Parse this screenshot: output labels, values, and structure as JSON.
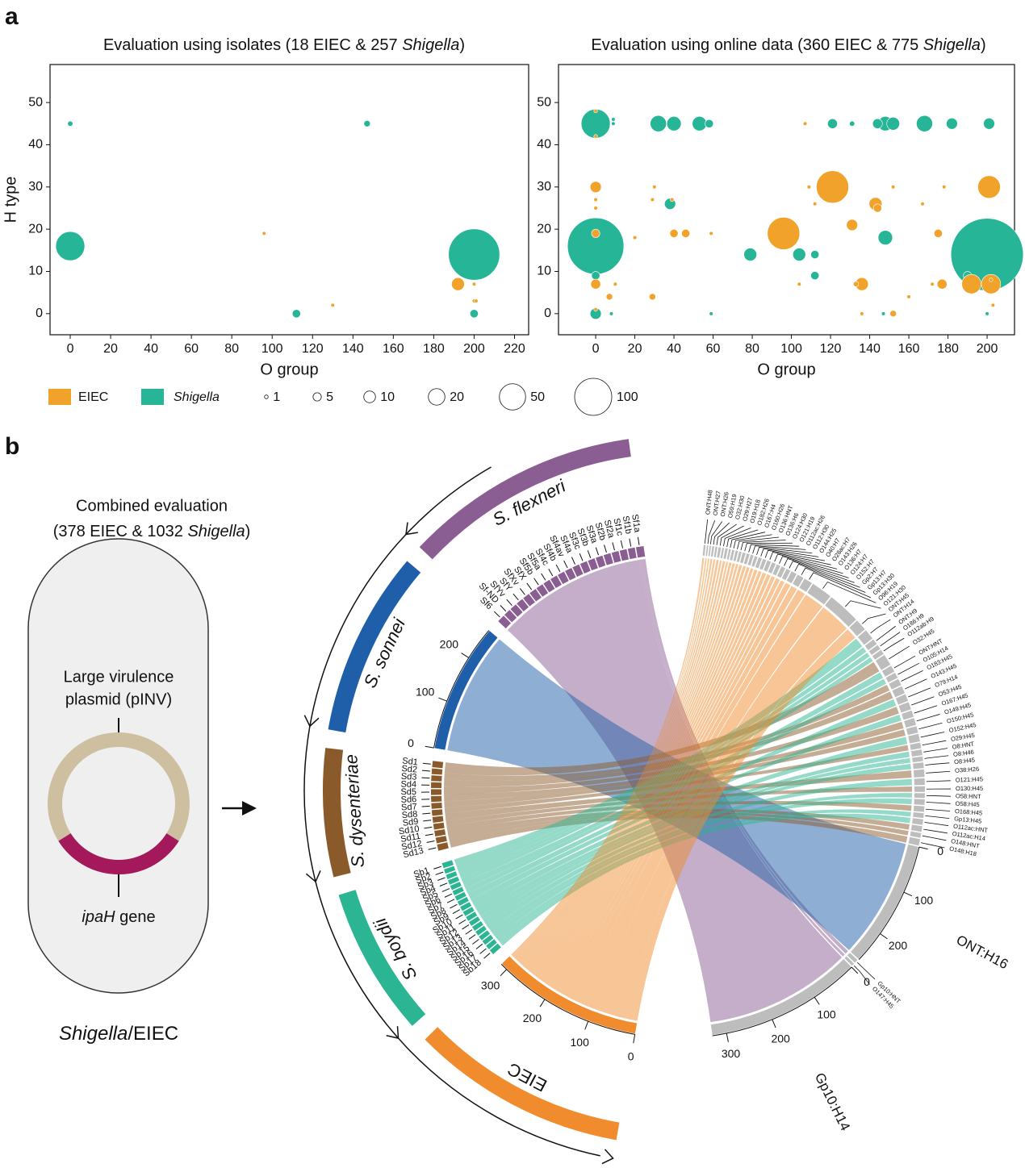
{
  "panel_labels": [
    "a",
    "b"
  ],
  "chart_data": [
    {
      "type": "scatter",
      "title": [
        "Evaluation using isolates (18 EIEC & 257 ",
        "Shigella",
        ")"
      ],
      "x_label": "O group",
      "y_label": "H type",
      "xlim": [
        -10,
        227
      ],
      "ylim": [
        -5,
        59
      ],
      "xticks": [
        0,
        20,
        40,
        60,
        80,
        100,
        120,
        140,
        160,
        180,
        200,
        220
      ],
      "yticks": [
        0,
        10,
        20,
        30,
        40,
        50
      ],
      "series": [
        {
          "name": "EIEC",
          "color": "#f0a22a",
          "x": [
            96,
            192,
            200,
            200,
            201,
            130
          ],
          "y": [
            19,
            7,
            7,
            3,
            3,
            2
          ],
          "size": [
            1,
            12,
            1,
            1,
            1,
            1
          ]
        },
        {
          "name": "Shigella",
          "color": "#27b597",
          "x": [
            200,
            0,
            0,
            147,
            112,
            200
          ],
          "y": [
            14,
            16,
            45,
            45,
            0,
            0
          ],
          "size": [
            190,
            61,
            2,
            3,
            5,
            5
          ]
        }
      ]
    },
    {
      "type": "scatter",
      "title": [
        "Evaluation using online data (360 EIEC & 775 ",
        "Shigella",
        ")"
      ],
      "x_label": "O group",
      "xlim": [
        -19,
        214
      ],
      "ylim": [
        -5,
        59
      ],
      "xticks": [
        0,
        20,
        40,
        60,
        80,
        100,
        120,
        140,
        160,
        180,
        200
      ],
      "yticks": [
        0,
        10,
        20,
        30,
        40,
        50
      ],
      "series": [
        {
          "name": "EIEC",
          "color": "#f0a22a",
          "x": [
            96,
            121,
            201,
            192,
            202,
            136,
            143,
            0,
            131,
            0,
            177,
            0,
            40,
            46,
            144,
            175,
            7,
            29,
            152,
            133,
            0,
            0,
            0,
            0,
            10,
            0,
            30,
            29,
            39,
            20,
            59,
            104,
            109,
            112,
            107,
            136,
            152,
            160,
            167,
            172,
            178,
            203,
            202
          ],
          "y": [
            19,
            30,
            30,
            7,
            7,
            7,
            26,
            30,
            21,
            7,
            7,
            19,
            19,
            19,
            25,
            19,
            4,
            4,
            0,
            7,
            48,
            42,
            27,
            25,
            7,
            1,
            30,
            27,
            27,
            18,
            19,
            7,
            30,
            26,
            45,
            0,
            30,
            4,
            26,
            7,
            30,
            2,
            8
          ],
          "size": [
            76,
            76,
            37,
            27,
            27,
            12,
            12,
            9,
            9,
            7,
            7,
            5,
            5,
            5,
            5,
            5,
            3,
            3,
            3,
            2,
            1,
            1,
            1,
            1,
            1,
            1,
            1,
            1,
            1,
            1,
            1,
            1,
            1,
            1,
            1,
            1,
            1,
            1,
            1,
            1,
            1,
            1,
            1
          ]
        },
        {
          "name": "Shigella",
          "color": "#27b597",
          "x": [
            200,
            0,
            0,
            32,
            40,
            53,
            168,
            148,
            152,
            182,
            201,
            121,
            144,
            58,
            131,
            9,
            9,
            38,
            79,
            104,
            112,
            112,
            148,
            0,
            190,
            0,
            8,
            59,
            147,
            200
          ],
          "y": [
            14,
            16,
            45,
            45,
            45,
            45,
            45,
            45,
            45,
            45,
            45,
            45,
            45,
            45,
            45,
            46,
            45,
            26,
            14,
            14,
            14,
            9,
            18,
            9,
            9,
            0,
            0,
            0,
            0,
            0
          ],
          "size": [
            380,
            230,
            61,
            19,
            15,
            15,
            19,
            15,
            12,
            9,
            9,
            7,
            7,
            5,
            2,
            1,
            1,
            9,
            12,
            12,
            5,
            5,
            15,
            5,
            5,
            9,
            1,
            1,
            1,
            1
          ]
        }
      ]
    }
  ],
  "size_legend": [
    1,
    5,
    10,
    20,
    50,
    100
  ],
  "combined": {
    "title": "Combined evaluation",
    "subtitle": [
      "(378 EIEC & 1032 ",
      "Shigella",
      ")"
    ],
    "plasmid": [
      "Large virulence",
      "plasmid (pINV)"
    ],
    "gene": [
      "ipaH",
      " gene"
    ],
    "cell": [
      "Shigella",
      "/EIEC"
    ]
  },
  "chord": {
    "target_color": "#bdbdbd",
    "groups": [
      {
        "name": "S. flexneri",
        "color": "#8b5e93",
        "labels": [
          "Sf1a",
          "Sf1b",
          "Sf1c",
          "Sf2a",
          "Sf2b",
          "Sf3a",
          "Sf3b",
          "Sf3c",
          "Sf4a",
          "Sf4av",
          "Sf4b",
          "Sf4c",
          "Sf5a",
          "Sf5b",
          "SfX",
          "SfXv",
          "SfY",
          "SfYv",
          "Sf-ND",
          "Sf6"
        ]
      },
      {
        "name": "S. sonnei",
        "color": "#1f5ea8",
        "ticks": [
          0,
          100,
          200
        ]
      },
      {
        "name": "S. dysenteriae",
        "color": "#8b5a2b",
        "labels": [
          "Sd1",
          "Sd2",
          "Sd3",
          "Sd4",
          "Sd5",
          "Sd6",
          "Sd7",
          "Sd8",
          "Sd9",
          "Sd10",
          "Sd11",
          "Sd12",
          "Sd13"
        ]
      },
      {
        "name": "S. boydii",
        "color": "#2cb592",
        "labels": [
          "Sb1",
          "Sb2",
          "Sb3",
          "Sb4",
          "Sb5",
          "Sb6",
          "Sb7",
          "Sb8",
          "Sb9",
          "Sb10",
          "Sb11",
          "Sb12",
          "Sb13",
          "Sb14",
          "Sb15",
          "Sb16",
          "Sb17",
          "Sb18"
        ]
      },
      {
        "name": "EIEC",
        "color": "#f08c2e",
        "ticks": [
          0,
          100,
          200,
          300
        ]
      }
    ],
    "targets": [
      {
        "name": "ONT:H48",
        "source": 4,
        "value": 4
      },
      {
        "name": "ONT:H27",
        "source": 4,
        "value": 3
      },
      {
        "name": "ONT:H26",
        "source": 4,
        "value": 3
      },
      {
        "name": "O59:H19",
        "source": 4,
        "value": 4
      },
      {
        "name": "O32:H30",
        "source": 4,
        "value": 4
      },
      {
        "name": "O29:H27",
        "source": 4,
        "value": 5
      },
      {
        "name": "O19:H18",
        "source": 4,
        "value": 4
      },
      {
        "name": "O182:H26",
        "source": 4,
        "value": 5
      },
      {
        "name": "O167:H4",
        "source": 4,
        "value": 4
      },
      {
        "name": "O160:H26",
        "source": 4,
        "value": 5
      },
      {
        "name": "O136:HNT",
        "source": 4,
        "value": 5
      },
      {
        "name": "O136:H6",
        "source": 4,
        "value": 5
      },
      {
        "name": "O124:H30",
        "source": 4,
        "value": 6
      },
      {
        "name": "O121:H19",
        "source": 4,
        "value": 6
      },
      {
        "name": "O112ac:H26",
        "source": 4,
        "value": 6
      },
      {
        "name": "O112:H30",
        "source": 4,
        "value": 6
      },
      {
        "name": "O144:H25",
        "source": 4,
        "value": 7
      },
      {
        "name": "O40:H7",
        "source": 4,
        "value": 7
      },
      {
        "name": "O28ac:H7",
        "source": 4,
        "value": 8
      },
      {
        "name": "O143:H26",
        "source": 4,
        "value": 8
      },
      {
        "name": "O136:H7",
        "source": 4,
        "value": 8
      },
      {
        "name": "O124:H7",
        "source": 4,
        "value": 9
      },
      {
        "name": "O152:H7",
        "source": 4,
        "value": 9
      },
      {
        "name": "Gp2:H7",
        "source": 4,
        "value": 12
      },
      {
        "name": "Gp13:H7",
        "source": 4,
        "value": 14
      },
      {
        "name": "Gp13:H30",
        "source": 4,
        "value": 18
      },
      {
        "name": "O96:H19",
        "source": 4,
        "value": 45
      },
      {
        "name": "O121:H30",
        "source": 4,
        "value": 70
      },
      {
        "name": "ONT:H45",
        "source": 4,
        "value": 25
      },
      {
        "name": "ONT:H14",
        "source": 3,
        "value": 22
      },
      {
        "name": "ONT:H9",
        "source": 3,
        "value": 12
      },
      {
        "name": "O186:H9",
        "source": 3,
        "value": 10
      },
      {
        "name": "O112ab:H9",
        "source": 3,
        "value": 10
      },
      {
        "name": "O32:H45",
        "source": 2,
        "value": 24
      },
      {
        "name": "ONT:HNT",
        "source": 3,
        "value": 14
      },
      {
        "name": "O105:H14",
        "source": 3,
        "value": 12
      },
      {
        "name": "O183:H45",
        "source": 2,
        "value": 14
      },
      {
        "name": "O143:H45",
        "source": 2,
        "value": 16
      },
      {
        "name": "O79:H14",
        "source": 3,
        "value": 15
      },
      {
        "name": "O53:H45",
        "source": 2,
        "value": 16
      },
      {
        "name": "O167:H45",
        "source": 3,
        "value": 14
      },
      {
        "name": "O149:H45",
        "source": 2,
        "value": 15
      },
      {
        "name": "O150:H45",
        "source": 2,
        "value": 14
      },
      {
        "name": "O152:H45",
        "source": 3,
        "value": 16
      },
      {
        "name": "O29:H45",
        "source": 2,
        "value": 12
      },
      {
        "name": "O8:HNT",
        "source": 3,
        "value": 12
      },
      {
        "name": "O8:H46",
        "source": 3,
        "value": 10
      },
      {
        "name": "O8:H45",
        "source": 3,
        "value": 12
      },
      {
        "name": "O38:H26",
        "source": 2,
        "value": 16
      },
      {
        "name": "O121:H45",
        "source": 3,
        "value": 14
      },
      {
        "name": "O130:H45",
        "source": 2,
        "value": 12
      },
      {
        "name": "O58:HNT",
        "source": 3,
        "value": 10
      },
      {
        "name": "O58:H45",
        "source": 3,
        "value": 12
      },
      {
        "name": "O168:H45",
        "source": 2,
        "value": 12
      },
      {
        "name": "Gp13:H45",
        "source": 3,
        "value": 10
      },
      {
        "name": "O112ac:HNT",
        "source": 3,
        "value": 12
      },
      {
        "name": "O112ac:H14",
        "source": 2,
        "value": 12
      },
      {
        "name": "O148:HNT",
        "source": 2,
        "value": 10
      },
      {
        "name": "O148:H18",
        "source": 2,
        "value": 14
      },
      {
        "name": "ONT:H16",
        "source": 1,
        "value": 270,
        "ticks": [
          0,
          100,
          200
        ]
      },
      {
        "name": "Gp10:HNT",
        "source": 0,
        "value": 8
      },
      {
        "name": "O147:H45",
        "source": 0,
        "value": 6
      },
      {
        "name": "Gp10:H14",
        "source": 0,
        "value": 330,
        "ticks": [
          0,
          100,
          200,
          300
        ]
      }
    ]
  }
}
